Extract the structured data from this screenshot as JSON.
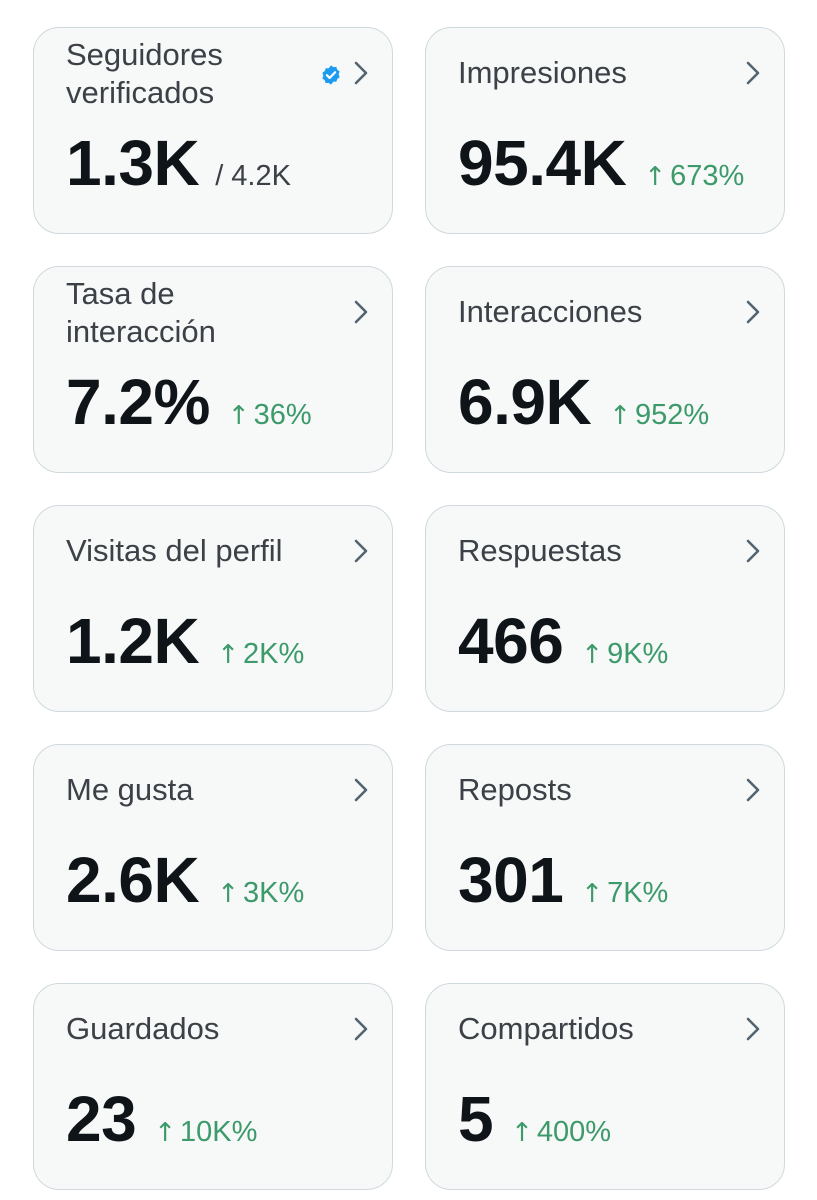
{
  "cards": [
    {
      "title": "Seguidores verificados",
      "value": "1.3K",
      "sub": "/ 4.2K",
      "verified_icon": "verified-badge-icon",
      "verified_color": "#1d9bf0"
    },
    {
      "title": "Impresiones",
      "value": "95.4K",
      "change": "673%"
    },
    {
      "title": "Tasa de interacción",
      "value": "7.2%",
      "change": "36%"
    },
    {
      "title": "Interacciones",
      "value": "6.9K",
      "change": "952%"
    },
    {
      "title": "Visitas del perfil",
      "value": "1.2K",
      "change": "2K%"
    },
    {
      "title": "Respuestas",
      "value": "466",
      "change": "9K%"
    },
    {
      "title": "Me gusta",
      "value": "2.6K",
      "change": "3K%"
    },
    {
      "title": "Reposts",
      "value": "301",
      "change": "7K%"
    },
    {
      "title": "Guardados",
      "value": "23",
      "change": "10K%"
    },
    {
      "title": "Compartidos",
      "value": "5",
      "change": "400%"
    }
  ],
  "change_arrow": "↑",
  "colors": {
    "positive": "#3d9a6a",
    "card_background": "#f7f8f8",
    "card_border": "#cfd9de",
    "text_primary": "#0f1419",
    "text_secondary": "#3b4147",
    "verified": "#1d9bf0"
  },
  "icons": {
    "chevron": "chevron-right-icon",
    "change": "arrow-up-icon"
  }
}
